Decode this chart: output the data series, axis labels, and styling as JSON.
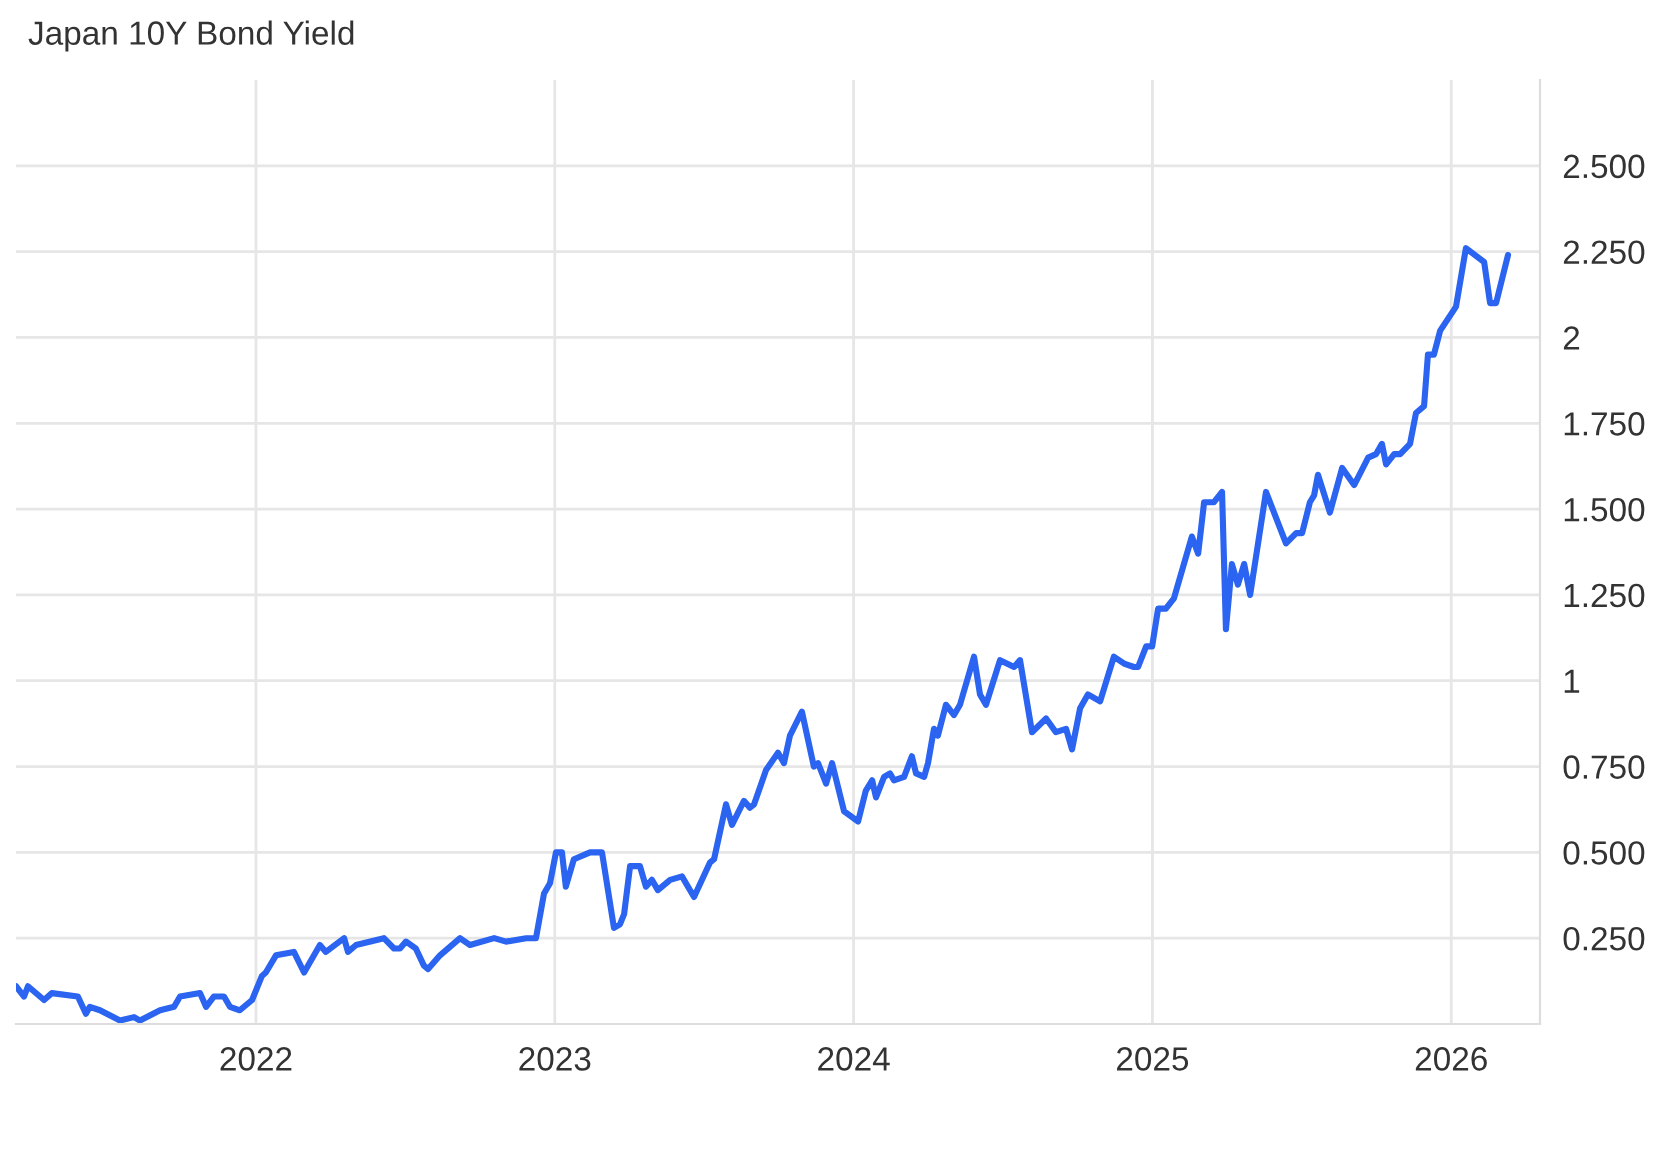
{
  "chart_data": {
    "type": "line",
    "title": "Japan 10Y Bond Yield",
    "x": [
      2021.197,
      2021.224,
      2021.237,
      2021.291,
      2021.317,
      2021.404,
      2021.431,
      2021.444,
      2021.478,
      2021.545,
      2021.592,
      2021.612,
      2021.679,
      2021.726,
      2021.746,
      2021.813,
      2021.833,
      2021.859,
      2021.893,
      2021.913,
      2021.946,
      2021.987,
      2022.02,
      2022.033,
      2022.067,
      2022.127,
      2022.161,
      2022.214,
      2022.234,
      2022.295,
      2022.308,
      2022.335,
      2022.428,
      2022.462,
      2022.482,
      2022.502,
      2022.535,
      2022.562,
      2022.576,
      2022.616,
      2022.683,
      2022.716,
      2022.797,
      2022.837,
      2022.904,
      2022.937,
      2022.964,
      2022.984,
      2023.004,
      2023.024,
      2023.037,
      2023.064,
      2023.118,
      2023.158,
      2023.198,
      2023.218,
      2023.232,
      2023.252,
      2023.285,
      2023.305,
      2023.325,
      2023.345,
      2023.386,
      2023.426,
      2023.439,
      2023.466,
      2023.519,
      2023.533,
      2023.573,
      2023.593,
      2023.633,
      2023.653,
      2023.667,
      2023.707,
      2023.747,
      2023.767,
      2023.787,
      2023.827,
      2023.867,
      2023.881,
      2023.908,
      2023.928,
      2023.968,
      2024.015,
      2024.041,
      2024.062,
      2024.075,
      2024.102,
      2024.122,
      2024.135,
      2024.169,
      2024.195,
      2024.209,
      2024.236,
      2024.249,
      2024.269,
      2024.282,
      2024.309,
      2024.336,
      2024.356,
      2024.403,
      2024.423,
      2024.443,
      2024.49,
      2024.537,
      2024.557,
      2024.597,
      2024.644,
      2024.677,
      2024.711,
      2024.731,
      2024.758,
      2024.784,
      2024.825,
      2024.871,
      2024.905,
      2024.938,
      2024.952,
      2024.979,
      2024.999,
      2025.019,
      2025.045,
      2025.072,
      2025.132,
      2025.153,
      2025.173,
      2025.206,
      2025.233,
      2025.246,
      2025.266,
      2025.286,
      2025.307,
      2025.327,
      2025.38,
      2025.447,
      2025.481,
      2025.501,
      2025.527,
      2025.541,
      2025.554,
      2025.594,
      2025.635,
      2025.675,
      2025.722,
      2025.748,
      2025.768,
      2025.782,
      2025.809,
      2025.829,
      2025.862,
      2025.882,
      2025.909,
      2025.922,
      2025.942,
      2025.963,
      2026.016,
      2026.049,
      2026.11,
      2026.13,
      2026.15,
      2026.19
    ],
    "series": [
      {
        "color": "#2b64f0",
        "values": [
          0.11,
          0.08,
          0.11,
          0.07,
          0.09,
          0.08,
          0.03,
          0.05,
          0.04,
          0.01,
          0.02,
          0.01,
          0.04,
          0.05,
          0.08,
          0.09,
          0.05,
          0.08,
          0.08,
          0.05,
          0.04,
          0.07,
          0.14,
          0.15,
          0.2,
          0.21,
          0.15,
          0.23,
          0.21,
          0.25,
          0.21,
          0.23,
          0.25,
          0.22,
          0.22,
          0.24,
          0.22,
          0.17,
          0.16,
          0.2,
          0.25,
          0.23,
          0.25,
          0.24,
          0.25,
          0.25,
          0.38,
          0.41,
          0.5,
          0.5,
          0.4,
          0.48,
          0.5,
          0.5,
          0.28,
          0.29,
          0.32,
          0.46,
          0.46,
          0.4,
          0.42,
          0.39,
          0.42,
          0.43,
          0.41,
          0.37,
          0.47,
          0.48,
          0.64,
          0.58,
          0.65,
          0.63,
          0.64,
          0.74,
          0.79,
          0.76,
          0.84,
          0.91,
          0.75,
          0.76,
          0.7,
          0.76,
          0.62,
          0.59,
          0.68,
          0.71,
          0.66,
          0.72,
          0.73,
          0.71,
          0.72,
          0.78,
          0.73,
          0.72,
          0.76,
          0.86,
          0.84,
          0.93,
          0.9,
          0.93,
          1.07,
          0.96,
          0.93,
          1.06,
          1.04,
          1.06,
          0.85,
          0.89,
          0.85,
          0.86,
          0.8,
          0.92,
          0.96,
          0.94,
          1.07,
          1.05,
          1.04,
          1.04,
          1.1,
          1.1,
          1.21,
          1.21,
          1.24,
          1.42,
          1.37,
          1.52,
          1.52,
          1.55,
          1.15,
          1.34,
          1.28,
          1.34,
          1.25,
          1.55,
          1.4,
          1.43,
          1.43,
          1.52,
          1.54,
          1.6,
          1.49,
          1.62,
          1.57,
          1.65,
          1.66,
          1.69,
          1.63,
          1.66,
          1.66,
          1.69,
          1.78,
          1.8,
          1.95,
          1.95,
          2.02,
          2.09,
          2.26,
          2.22,
          2.1,
          2.1,
          2.24
        ]
      }
    ],
    "xlim": [
      2021.197,
      2026.297
    ],
    "ylim": [
      0,
      2.75
    ],
    "xticks": [
      2022,
      2023,
      2024,
      2025,
      2026
    ],
    "yticks": [
      {
        "value": 0.25,
        "label": "0.250"
      },
      {
        "value": 0.5,
        "label": "0.500"
      },
      {
        "value": 0.75,
        "label": "0.750"
      },
      {
        "value": 1,
        "label": "1"
      },
      {
        "value": 1.25,
        "label": "1.250"
      },
      {
        "value": 1.5,
        "label": "1.500"
      },
      {
        "value": 1.75,
        "label": "1.750"
      },
      {
        "value": 2,
        "label": "2"
      },
      {
        "value": 2.25,
        "label": "2.250"
      },
      {
        "value": 2.5,
        "label": "2.500"
      }
    ],
    "grid": true,
    "line_style": "solid",
    "marker": "none"
  }
}
